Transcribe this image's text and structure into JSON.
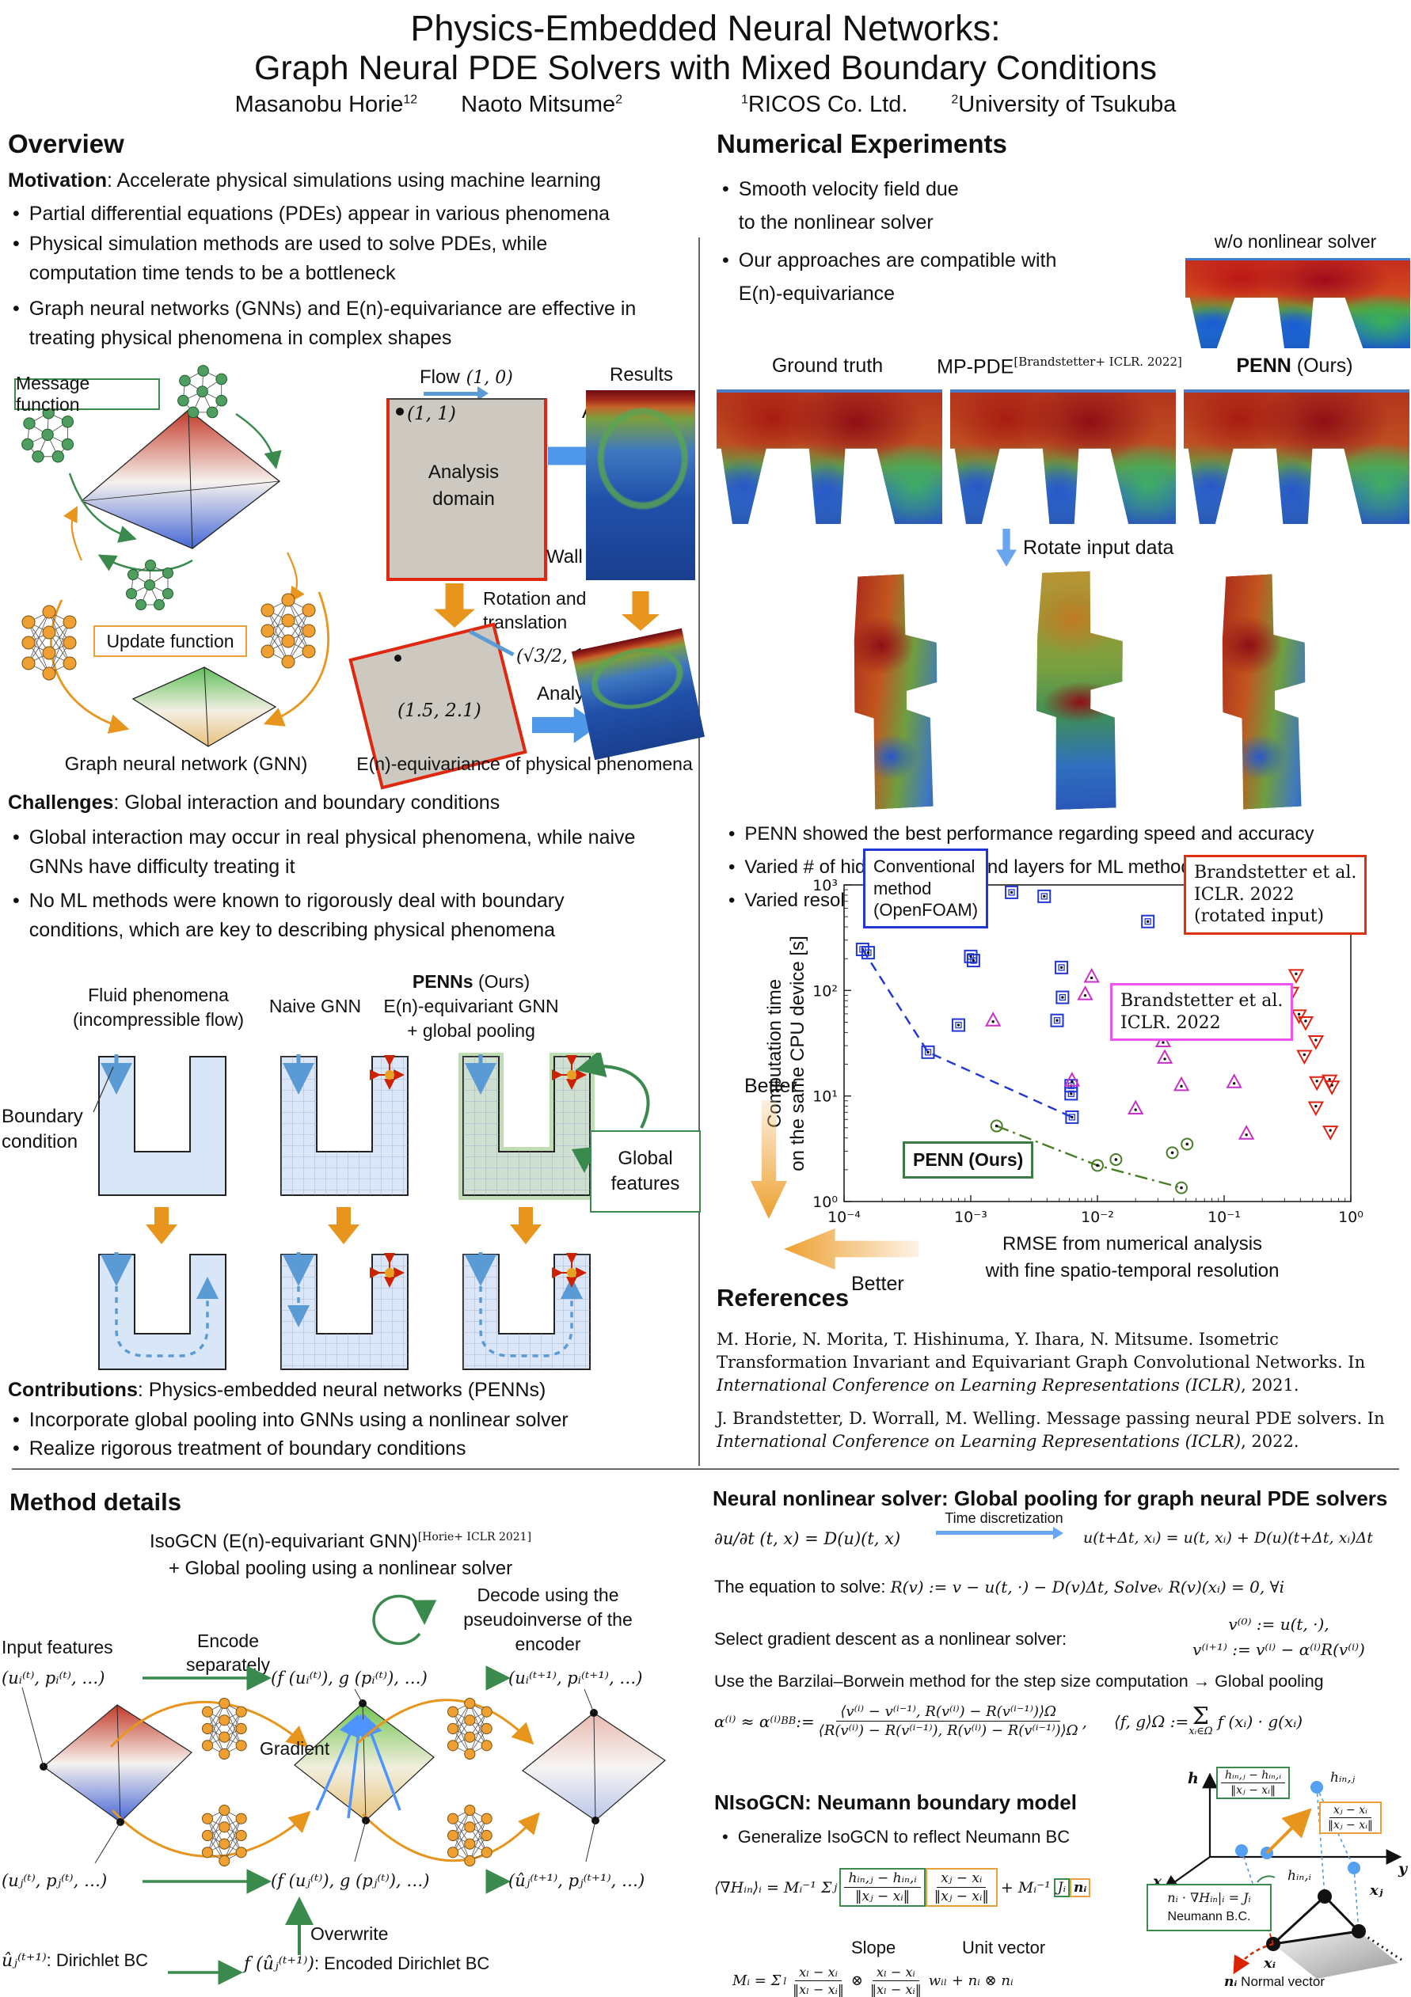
{
  "poster": {
    "title_line1": "Physics-Embedded Neural Networks:",
    "title_line2": "Graph Neural PDE Solvers with Mixed Boundary Conditions",
    "author1": "Masanobu Horie",
    "author1_sup": "12",
    "author2": "Naoto Mitsume",
    "author2_sup": "2",
    "affil1_sup": "1",
    "affil1": "RICOS Co. Ltd.",
    "affil2_sup": "2",
    "affil2": "University of Tsukuba"
  },
  "overview": {
    "heading": "Overview",
    "motivation_label": "Motivation",
    "motivation_text": ": Accelerate physical simulations using machine learning",
    "bullet1": "Partial differential equations (PDEs) appear in various phenomena",
    "bullet2": "Physical simulation methods are used to solve PDEs, while computation time tends to be a bottleneck",
    "bullet3": "Graph neural networks (GNNs) and E(n)-equivariance are effective in treating physical phenomena in complex shapes",
    "gnn": {
      "message_function": "Message function",
      "update_function": "Update function",
      "caption": "Graph neural network (GNN)"
    },
    "equiv": {
      "flow_label": "Flow",
      "flow_vec": "(1, 0)",
      "point": "(1, 1)",
      "domain_label": "Analysis domain",
      "wall_label": "Wall",
      "analysis_label": "Analysis",
      "results_label": "Results",
      "rotation_label": "Rotation and translation",
      "rot_vec": "(√3/2, 1/2)",
      "rot_point": "(1.5, 2.1)",
      "analysis2_label": "Analysis",
      "caption": "E(n)-equivariance of physical phenomena"
    },
    "challenges": {
      "label": "Challenges",
      "text": ": Global interaction and boundary conditions",
      "bullet1": "Global interaction may occur in real physical phenomena, while naive GNNs have difficulty treating it",
      "bullet2": "No ML methods were known to rigorously deal with boundary conditions, which are key to describing physical phenomena",
      "col1_line1": "Fluid phenomena",
      "col1_line2": "(incompressible flow)",
      "col2": "Naive GNN",
      "col3_bold": "PENNs",
      "col3_rest": " (Ours)",
      "col3_line2": "E(n)-equivariant GNN",
      "col3_line3": "+ global pooling",
      "boundary_label": "Boundary condition",
      "global_features": "Global features"
    },
    "contributions": {
      "label": "Contributions",
      "text": ": Physics-embedded neural networks (PENNs)",
      "bullet1": "Incorporate global pooling into GNNs using a nonlinear solver",
      "bullet2": "Realize rigorous treatment of boundary conditions"
    }
  },
  "experiments": {
    "heading": "Numerical Experiments",
    "bullet1": "Smooth velocity field due to the nonlinear solver",
    "bullet2": "Our approaches are compatible with E(n)-equivariance",
    "wo_label": "w/o nonlinear solver",
    "gt_label": "Ground truth",
    "mp_label": "MP-PDE",
    "mp_sup": "[Brandstetter+ ICLR. 2022]",
    "penn_label": "PENN",
    "penn_rest": " (Ours)",
    "rotate_label": "Rotate input data",
    "result_bullet1": "PENN showed the best performance regarding speed and accuracy",
    "result_bullet2": "Varied # of hidden features and layers for ML methods",
    "result_bullet3": "Varied resolution of space and time for conventional method"
  },
  "chart_data": {
    "type": "scatter",
    "x_scale": "log",
    "y_scale": "log",
    "xlim": [
      0.0001,
      1
    ],
    "ylim": [
      1,
      1000
    ],
    "x_ticks": [
      "10⁻⁴",
      "10⁻³",
      "10⁻²",
      "10⁻¹",
      "10⁰"
    ],
    "y_ticks": [
      "10⁰",
      "10¹",
      "10²",
      "10³"
    ],
    "xlabel_line1": "RMSE from numerical analysis",
    "xlabel_line2": "with fine spatio-temporal resolution",
    "ylabel_line1": "Computation time",
    "ylabel_line2": "on the same CPU device [s]",
    "better_down": "Better",
    "better_left": "Better",
    "series": [
      {
        "name": "Conventional method (OpenFOAM)",
        "marker": "square",
        "color": "#2236d4",
        "line_style": "dashed",
        "line_points": [
          [
            0.00014,
            245
          ],
          [
            0.00046,
            26
          ],
          [
            0.0063,
            6.3
          ]
        ],
        "points": [
          [
            0.00014,
            245
          ],
          [
            0.000155,
            228
          ],
          [
            0.00046,
            26
          ],
          [
            0.0008,
            47
          ],
          [
            0.001,
            210
          ],
          [
            0.00105,
            192
          ],
          [
            0.0021,
            850
          ],
          [
            0.0038,
            780
          ],
          [
            0.025,
            450
          ],
          [
            0.0052,
            165
          ],
          [
            0.0053,
            86
          ],
          [
            0.0048,
            52
          ],
          [
            0.0062,
            12.5
          ],
          [
            0.0062,
            10.5
          ],
          [
            0.0063,
            6.3
          ]
        ]
      },
      {
        "name": "Brandstetter et al. ICLR. 2022",
        "marker": "triangle-up",
        "color": "#c630c6",
        "points": [
          [
            0.0015,
            52
          ],
          [
            0.009,
            135
          ],
          [
            0.008,
            92
          ],
          [
            0.015,
            57
          ],
          [
            0.033,
            33
          ],
          [
            0.034,
            23
          ],
          [
            0.0063,
            14
          ],
          [
            0.046,
            12.7
          ],
          [
            0.12,
            13.5
          ],
          [
            0.02,
            7.6
          ],
          [
            0.15,
            4.4
          ]
        ]
      },
      {
        "name": "Brandstetter et al. ICLR. 2022 (rotated input)",
        "marker": "triangle-down",
        "color": "#e02010",
        "points": [
          [
            0.37,
            140
          ],
          [
            0.34,
            95
          ],
          [
            0.39,
            58
          ],
          [
            0.44,
            50
          ],
          [
            0.53,
            33
          ],
          [
            0.43,
            24
          ],
          [
            0.54,
            13.5
          ],
          [
            0.68,
            14
          ],
          [
            0.71,
            12.3
          ],
          [
            0.53,
            7.8
          ],
          [
            0.69,
            4.6
          ]
        ]
      },
      {
        "name": "PENN (Ours)",
        "marker": "circle",
        "color": "#4a7d28",
        "line_style": "dashdot",
        "line_points": [
          [
            0.0016,
            5.2
          ],
          [
            0.01,
            2.2
          ],
          [
            0.046,
            1.35
          ]
        ],
        "points": [
          [
            0.0016,
            5.2
          ],
          [
            0.01,
            2.2
          ],
          [
            0.046,
            1.35
          ],
          [
            0.014,
            2.5
          ],
          [
            0.039,
            2.9
          ],
          [
            0.051,
            3.5
          ]
        ]
      }
    ],
    "legend_boxes": [
      {
        "name": "conventional",
        "color": "#2236d4",
        "lines": [
          "Conventional",
          "method",
          "(OpenFOAM)"
        ]
      },
      {
        "name": "brandstetter-rotated",
        "color": "#e03010",
        "lines": [
          "Brandstetter et al.",
          "ICLR. 2022",
          "(rotated input)"
        ]
      },
      {
        "name": "brandstetter",
        "color": "#ee55ee",
        "lines": [
          "Brandstetter et al.",
          "ICLR. 2022"
        ]
      },
      {
        "name": "penn",
        "color": "#3c7a46",
        "lines": [
          "PENN (Ours)"
        ]
      }
    ]
  },
  "references": {
    "heading": "References",
    "ref1_pre": "M. Horie, N. Morita, T. Hishinuma, Y. Ihara, N. Mitsume. Isometric Transformation Invariant and Equivariant Graph Convolutional Networks. In ",
    "ref1_italic": "International Conference on Learning Representations (ICLR)",
    "ref1_post": ", 2021.",
    "ref2_pre": "J. Brandstetter, D. Worrall, M. Welling. Message passing neural PDE solvers. In ",
    "ref2_italic": "International Conference on Learning Representations (ICLR)",
    "ref2_post": ", 2022."
  },
  "method": {
    "heading": "Method details",
    "iso_label": "IsoGCN (E(n)-equivariant GNN)",
    "iso_sup": "[Horie+ ICLR 2021]",
    "iso_line2": "+ Global pooling using a nonlinear solver",
    "input_features": "Input features",
    "encode_label": "Encode separately",
    "decode_label": "Decode using the pseudoinverse of the encoder",
    "gradient_label": "Gradient",
    "overwrite_label": "Overwrite",
    "math_i_in": "(uᵢ⁽ᵗ⁾, pᵢ⁽ᵗ⁾, …)",
    "math_i_mid": "(f (uᵢ⁽ᵗ⁾), g (pᵢ⁽ᵗ⁾), …)",
    "math_i_out": "(uᵢ⁽ᵗ⁺¹⁾, pᵢ⁽ᵗ⁺¹⁾, …)",
    "math_j_in": "(uⱼ⁽ᵗ⁾, pⱼ⁽ᵗ⁾, …)",
    "math_j_mid": "(f (uⱼ⁽ᵗ⁾), g (pⱼ⁽ᵗ⁾), …)",
    "math_j_out": "(ûⱼ⁽ᵗ⁺¹⁾, pⱼ⁽ᵗ⁺¹⁾, …)",
    "dirichlet_math": "ûⱼ⁽ᵗ⁺¹⁾",
    "dirichlet_text": ": Dirichlet BC",
    "encoded_math": "f (ûⱼ⁽ᵗ⁺¹⁾)",
    "encoded_text": ": Encoded Dirichlet BC"
  },
  "solver": {
    "heading": "Neural nonlinear solver: Global pooling for graph neural PDE solvers",
    "eq1_lhs": "∂u/∂t (t, x) = D(u)(t, x)",
    "eq1_arrow": "Time discretization",
    "eq1_rhs": "u(t+Δt, xᵢ) = u(t, xᵢ) + D(u)(t+Δt, xᵢ)Δt",
    "eq2_label": "The equation to solve: ",
    "eq2_math": "R(v) := v − u(t, ·) − D(v)Δt,   Solveᵥ R(v)(xᵢ) = 0,  ∀i",
    "eq3_label": "Select gradient descent as a nonlinear solver:",
    "eq3_line1": "v⁽⁰⁾ := u(t, ·),",
    "eq3_line2": "v⁽ⁱ⁺¹⁾ := v⁽ⁱ⁾ − α⁽ⁱ⁾R(v⁽ⁱ⁾)",
    "eq4_label": "Use the Barzilai–Borwein method for the step size computation → Global pooling",
    "eq5_lhs": "α⁽ⁱ⁾ ≈ α⁽ⁱ⁾",
    "eq5_sub": "BB",
    "eq5_assign": " := ",
    "eq5_num": "⟨v⁽ⁱ⁾ − v⁽ⁱ⁻¹⁾, R(v⁽ⁱ⁾) − R(v⁽ⁱ⁻¹⁾)⟩Ω",
    "eq5_den": "⟨R(v⁽ⁱ⁾) − R(v⁽ⁱ⁻¹⁾), R(v⁽ⁱ⁾) − R(v⁽ⁱ⁻¹⁾)⟩Ω",
    "eq5_comma": ",",
    "inner_lhs": "⟨f, g⟩Ω := ",
    "inner_sigma": "Σ",
    "inner_under": "xᵢ∈Ω",
    "inner_body": "f (xᵢ) · g(xᵢ)"
  },
  "nisogcn": {
    "heading": "NIsoGCN: Neumann boundary model",
    "bullet": "Generalize IsoGCN to reflect Neumann BC",
    "eq_lhs": "⟨∇Hᵢₙ⟩ᵢ = Mᵢ⁻¹ Σ",
    "eq_sum_under": "j",
    "slope_num": "hᵢₙ,ⱼ − hᵢₙ,ᵢ",
    "slope_den": "‖xⱼ − xᵢ‖",
    "unit_num": "xⱼ − xᵢ",
    "unit_den": "‖xⱼ − xᵢ‖",
    "eq_tail": "+ Mᵢ⁻¹",
    "eq_tail_J": "Jᵢ",
    "eq_tail_n": "nᵢ",
    "slope_label": "Slope",
    "unit_label": "Unit vector",
    "eqM_lhs": "Mᵢ = Σ",
    "eqM_under": "l",
    "eqM_f1_num": "xₗ − xᵢ",
    "eqM_f1_den": "‖xₗ − xᵢ‖",
    "eqM_otimes": "⊗",
    "eqM_f2_num": "xₗ − xᵢ",
    "eqM_f2_den": "‖xₗ − xᵢ‖",
    "eqM_tail": "wᵢₗ + nᵢ ⊗ nᵢ",
    "diagram": {
      "h": "h",
      "x": "x",
      "y": "y",
      "hinj": "hᵢₙ,ⱼ",
      "hini": "hᵢₙ,ᵢ",
      "xj": "xⱼ",
      "xi": "xᵢ",
      "box_slope_num": "hᵢₙ,ⱼ − hᵢₙ,ᵢ",
      "box_slope_den": "‖xⱼ − xᵢ‖",
      "box_unit_num": "xⱼ − xᵢ",
      "box_unit_den": "‖xⱼ − xᵢ‖",
      "neumann_eq": "nᵢ · ∇Hᵢₙ|ᵢ = Jᵢ",
      "neumann_label": "Neumann B.C.",
      "normal_math": "nᵢ",
      "normal_label": "Normal vector"
    }
  }
}
